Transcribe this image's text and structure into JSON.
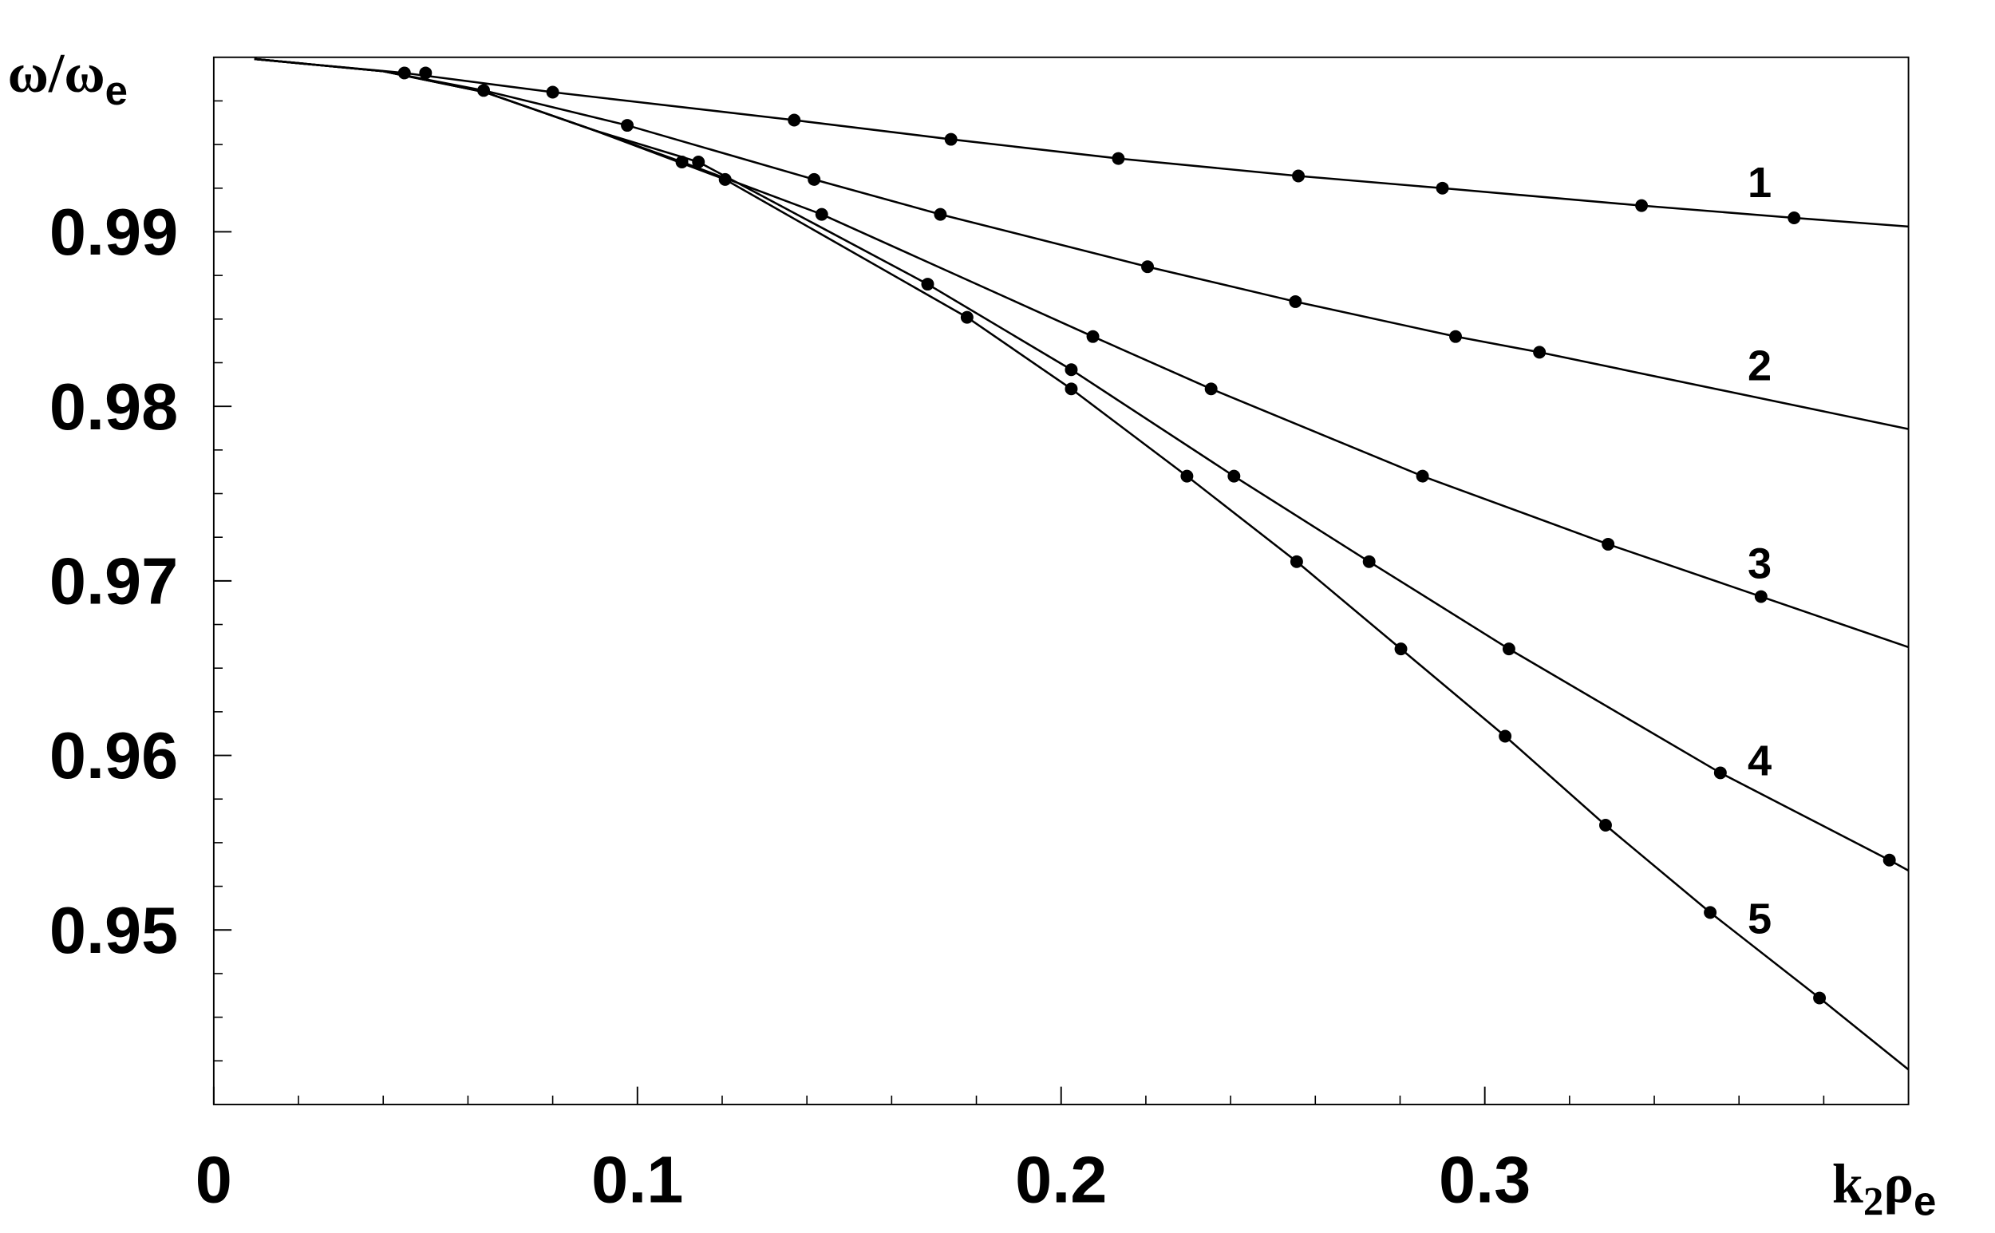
{
  "chart_data": {
    "type": "line",
    "xlabel": [
      "k",
      "2",
      "ρ",
      "e"
    ],
    "ylabel": [
      "ω/ω",
      "e"
    ],
    "xlim": [
      0,
      0.4
    ],
    "ylim": [
      0.94,
      1.0
    ],
    "xticks": [
      0,
      0.1,
      0.2,
      0.3
    ],
    "yticks": [
      0.95,
      0.96,
      0.97,
      0.98,
      0.99
    ],
    "xminorticks": [
      0.02,
      0.04,
      0.06,
      0.08,
      0.12,
      0.14,
      0.16,
      0.18,
      0.22,
      0.24,
      0.26,
      0.28,
      0.32,
      0.34,
      0.36,
      0.38
    ],
    "yminorticks": [
      0.9425,
      0.945,
      0.9475,
      0.9525,
      0.955,
      0.9575,
      0.9625,
      0.965,
      0.9675,
      0.9725,
      0.975,
      0.9775,
      0.9825,
      0.985,
      0.9875,
      0.9925,
      0.995,
      0.9975
    ],
    "color": "#000000",
    "series": [
      {
        "name": "1",
        "x": [
          0.045,
          0.05,
          0.08,
          0.137,
          0.174,
          0.2135,
          0.256,
          0.29,
          0.337,
          0.373
        ],
        "values": [
          0.9991,
          0.9991,
          0.998,
          0.9964,
          0.9953,
          0.9942,
          0.9932,
          0.9925,
          0.9915,
          0.9908
        ],
        "curve_x": [
          0.0096,
          0.045,
          0.08,
          0.137,
          0.174,
          0.2135,
          0.256,
          0.29,
          0.337,
          0.373,
          0.4
        ],
        "curve_values": [
          0.9999,
          0.9991,
          0.998,
          0.9964,
          0.9953,
          0.9942,
          0.9932,
          0.9925,
          0.9915,
          0.9908,
          0.9903
        ]
      },
      {
        "name": "2",
        "x": [
          0.0637,
          0.0976,
          0.1417,
          0.1715,
          0.2204,
          0.2553,
          0.2931,
          0.3129
        ],
        "values": [
          0.9981,
          0.9961,
          0.993,
          0.991,
          0.988,
          0.986,
          0.984,
          0.9831
        ],
        "curve_x": [
          0.0096,
          0.04,
          0.0637,
          0.0976,
          0.1417,
          0.1715,
          0.2204,
          0.2553,
          0.2931,
          0.3129,
          0.4
        ],
        "curve_values": [
          0.9999,
          0.9992,
          0.9981,
          0.9961,
          0.993,
          0.991,
          0.988,
          0.986,
          0.984,
          0.9831,
          0.9787
        ]
      },
      {
        "name": "3",
        "x": [
          0.1105,
          0.1435,
          0.2075,
          0.2354,
          0.2853,
          0.3291,
          0.3652
        ],
        "values": [
          0.994,
          0.991,
          0.984,
          0.981,
          0.976,
          0.9721,
          0.9691
        ],
        "curve_x": [
          0.0096,
          0.04,
          0.064,
          0.09,
          0.1105,
          0.1435,
          0.2075,
          0.2354,
          0.2853,
          0.3291,
          0.3652,
          0.4
        ],
        "curve_values": [
          0.9999,
          0.9992,
          0.998,
          0.9958,
          0.994,
          0.991,
          0.984,
          0.981,
          0.976,
          0.9721,
          0.9691,
          0.9662
        ]
      },
      {
        "name": "4",
        "x": [
          0.1144,
          0.1685,
          0.2024,
          0.2408,
          0.2727,
          0.3057,
          0.3556,
          0.3955
        ],
        "values": [
          0.994,
          0.987,
          0.9821,
          0.976,
          0.9711,
          0.9661,
          0.959,
          0.954
        ],
        "curve_x": [
          0.0096,
          0.04,
          0.064,
          0.09,
          0.1144,
          0.1685,
          0.2024,
          0.2408,
          0.2727,
          0.3057,
          0.3556,
          0.3955,
          0.4
        ],
        "curve_values": [
          0.9999,
          0.9992,
          0.998,
          0.9958,
          0.994,
          0.987,
          0.9821,
          0.976,
          0.9711,
          0.9661,
          0.959,
          0.954,
          0.9534
        ]
      },
      {
        "name": "5",
        "x": [
          0.1207,
          0.1778,
          0.2024,
          0.2297,
          0.2556,
          0.2802,
          0.3048,
          0.3285,
          0.3532,
          0.379
        ],
        "values": [
          0.993,
          0.9851,
          0.981,
          0.976,
          0.9711,
          0.9661,
          0.9611,
          0.956,
          0.951,
          0.9461
        ],
        "curve_x": [
          0.0096,
          0.04,
          0.064,
          0.09,
          0.1207,
          0.1778,
          0.2024,
          0.2297,
          0.2556,
          0.2802,
          0.3048,
          0.3285,
          0.3532,
          0.379,
          0.4
        ],
        "curve_values": [
          0.9999,
          0.9992,
          0.998,
          0.9958,
          0.993,
          0.9851,
          0.981,
          0.976,
          0.9711,
          0.9661,
          0.9611,
          0.956,
          0.951,
          0.9461,
          0.942
        ]
      }
    ]
  }
}
